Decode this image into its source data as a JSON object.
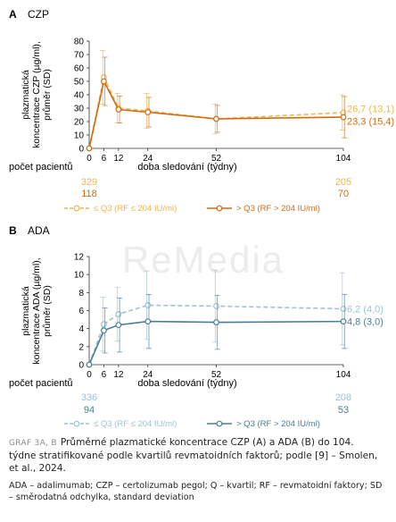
{
  "chart_data": [
    {
      "type": "line",
      "panel_letter": "A",
      "panel_title": "CZP",
      "ylabel": "plazmatická koncentrace CZP (µg/ml), průměr (SD)",
      "xlabel": "doba sledování (týdny)",
      "x": [
        0,
        6,
        12,
        24,
        52,
        104
      ],
      "x_ticks": [
        0,
        6,
        12,
        24,
        52,
        104
      ],
      "ylim": [
        0,
        80
      ],
      "y_ticks": [
        0,
        10,
        20,
        30,
        40,
        50,
        60,
        70,
        80
      ],
      "series": [
        {
          "name": "≤ Q3 (RF ≤ 204 IU/ml)",
          "color": "#f0b54e",
          "dashed": true,
          "values": [
            0,
            53,
            30,
            28,
            22,
            26.7
          ],
          "sd": [
            0,
            20,
            11,
            13,
            11,
            13.1
          ],
          "end_label": "26,7 (13,1)",
          "patients_label": "329",
          "patients_end_label": "205"
        },
        {
          "name": "> Q3 (RF > 204 IU/ml)",
          "color": "#d06c12",
          "dashed": false,
          "values": [
            0,
            50,
            29,
            27,
            22,
            23.3
          ],
          "sd": [
            0,
            18,
            10,
            11,
            10,
            15.4
          ],
          "end_label": "23,3 (15,4)",
          "patients_label": "118",
          "patients_end_label": "70"
        }
      ]
    },
    {
      "type": "line",
      "panel_letter": "B",
      "panel_title": "ADA",
      "ylabel": "plazmatická koncentrace ADA (µg/ml), průměr (SD)",
      "xlabel": "doba sledování (týdny)",
      "x": [
        0,
        6,
        12,
        24,
        52,
        104
      ],
      "x_ticks": [
        0,
        6,
        12,
        24,
        52,
        104
      ],
      "ylim": [
        0,
        12
      ],
      "y_ticks": [
        0,
        2,
        4,
        6,
        8,
        10,
        12
      ],
      "series": [
        {
          "name": "≤ Q3 (RF ≤ 204 IU/ml)",
          "color": "#9dc2d5",
          "dashed": true,
          "values": [
            0,
            4.5,
            5.6,
            6.6,
            6.5,
            6.2
          ],
          "sd": [
            0,
            3,
            3,
            3.8,
            4,
            4.0
          ],
          "end_label": "6,2 (4,0)",
          "patients_label": "336",
          "patients_end_label": "208"
        },
        {
          "name": "> Q3 (RF > 204 IU/ml)",
          "color": "#4a7d96",
          "dashed": false,
          "values": [
            0,
            3.8,
            4.4,
            4.8,
            4.7,
            4.8
          ],
          "sd": [
            0,
            2.5,
            3,
            3,
            3,
            3.0
          ],
          "end_label": "4,8 (3,0)",
          "patients_label": "94",
          "patients_end_label": "53"
        }
      ]
    }
  ],
  "patients_heading": "počet pacientů",
  "watermark": "ReMedia",
  "caption": {
    "lead": "GRAF 3A, B",
    "text": "Průměrné plazmatické koncentrace CZP (A) a ADA (B) do 104. týdne stratifikované podle kvartilů revmatoidních faktorů; podle [9] – Smolen, et al., 2024.",
    "abbreviations": "ADA – adalimumab; CZP – certolizumab pegol; Q – kvartil; RF – revmatoidní faktory; SD – směrodatná odchylka, standard deviation"
  }
}
